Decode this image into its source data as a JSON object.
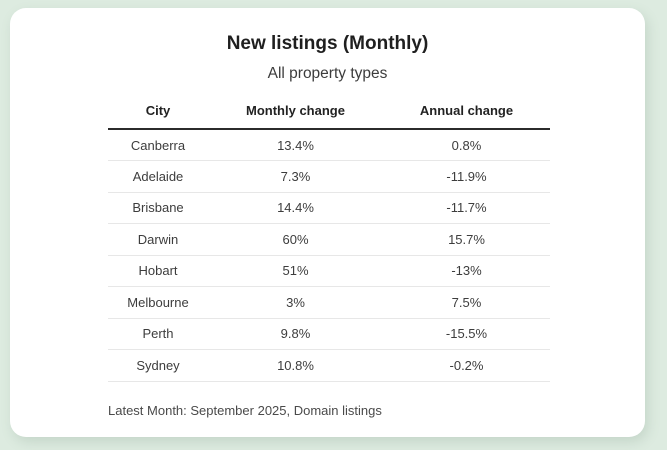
{
  "colors": {
    "page_background": "#ddebe0",
    "card_background": "#ffffff",
    "header_rule": "#2b2b2b",
    "row_rule": "#e7e7e7",
    "title_text": "#1f1f1f",
    "body_text": "#3d3d3d",
    "footnote_text": "#4a4a4a"
  },
  "chart_data": {
    "type": "table",
    "title": "New listings (Monthly)",
    "subtitle": "All property types",
    "columns": [
      "City",
      "Monthly change",
      "Annual change"
    ],
    "rows": [
      [
        "Canberra",
        "13.4%",
        "0.8%"
      ],
      [
        "Adelaide",
        "7.3%",
        "-11.9%"
      ],
      [
        "Brisbane",
        "14.4%",
        "-11.7%"
      ],
      [
        "Darwin",
        "60%",
        "15.7%"
      ],
      [
        "Hobart",
        "51%",
        "-13%"
      ],
      [
        "Melbourne",
        "3%",
        "7.5%"
      ],
      [
        "Perth",
        "9.8%",
        "-15.5%"
      ],
      [
        "Sydney",
        "10.8%",
        "-0.2%"
      ]
    ],
    "monthly_change_values": [
      13.4,
      7.3,
      14.4,
      60,
      51,
      3,
      9.8,
      10.8
    ],
    "annual_change_values": [
      0.8,
      -11.9,
      -11.7,
      15.7,
      -13,
      7.5,
      -15.5,
      -0.2
    ],
    "footnote": "Latest Month: September 2025, Domain listings"
  }
}
